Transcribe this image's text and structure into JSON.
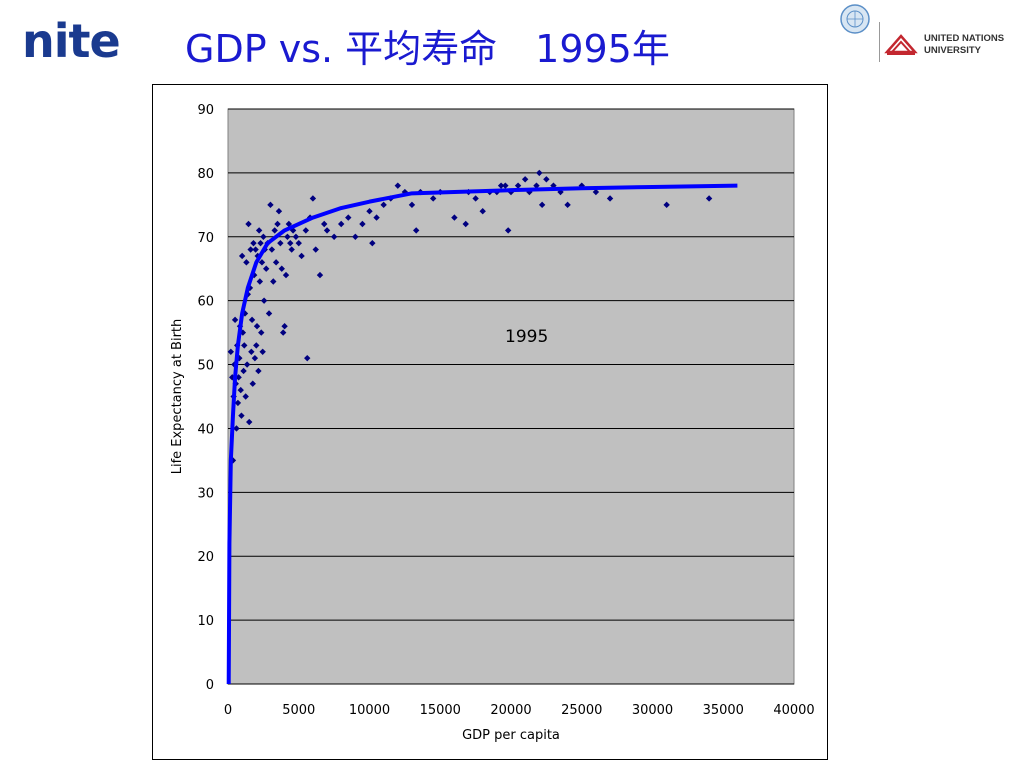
{
  "header": {
    "logo_text": "nite",
    "title": "GDP vs. 平均寿命　1995年",
    "partner_line1": "UNITED NATIONS",
    "partner_line2": "UNIVERSITY"
  },
  "chart_data": {
    "type": "scatter",
    "title": "",
    "xlabel": "GDP per capita",
    "ylabel": "Life Expectancy at Birth",
    "xlim": [
      0,
      40000
    ],
    "ylim": [
      0,
      90
    ],
    "xticks": [
      0,
      5000,
      10000,
      15000,
      20000,
      25000,
      30000,
      35000,
      40000
    ],
    "yticks": [
      0,
      10,
      20,
      30,
      40,
      50,
      60,
      70,
      80,
      90
    ],
    "grid": "horizontal",
    "background_color": "#c0c0c0",
    "annotation": "1995",
    "series": [
      {
        "kind": "scatter",
        "color": "#000080",
        "points": [
          [
            200,
            52
          ],
          [
            300,
            48
          ],
          [
            350,
            35
          ],
          [
            400,
            45
          ],
          [
            450,
            50
          ],
          [
            500,
            57
          ],
          [
            550,
            47
          ],
          [
            600,
            40
          ],
          [
            650,
            53
          ],
          [
            700,
            44
          ],
          [
            750,
            48
          ],
          [
            800,
            51
          ],
          [
            850,
            56
          ],
          [
            900,
            46
          ],
          [
            950,
            42
          ],
          [
            1000,
            67
          ],
          [
            1050,
            55
          ],
          [
            1100,
            49
          ],
          [
            1150,
            53
          ],
          [
            1200,
            58
          ],
          [
            1250,
            45
          ],
          [
            1300,
            66
          ],
          [
            1350,
            50
          ],
          [
            1400,
            61
          ],
          [
            1450,
            72
          ],
          [
            1500,
            41
          ],
          [
            1550,
            62
          ],
          [
            1600,
            68
          ],
          [
            1650,
            52
          ],
          [
            1700,
            57
          ],
          [
            1750,
            47
          ],
          [
            1800,
            69
          ],
          [
            1850,
            64
          ],
          [
            1900,
            51
          ],
          [
            1950,
            68
          ],
          [
            2000,
            53
          ],
          [
            2050,
            56
          ],
          [
            2100,
            67
          ],
          [
            2150,
            49
          ],
          [
            2200,
            71
          ],
          [
            2250,
            63
          ],
          [
            2300,
            69
          ],
          [
            2350,
            55
          ],
          [
            2400,
            66
          ],
          [
            2450,
            52
          ],
          [
            2500,
            70
          ],
          [
            2550,
            60
          ],
          [
            2600,
            68
          ],
          [
            2700,
            65
          ],
          [
            2800,
            69
          ],
          [
            2900,
            58
          ],
          [
            3000,
            75
          ],
          [
            3100,
            68
          ],
          [
            3200,
            63
          ],
          [
            3300,
            71
          ],
          [
            3400,
            66
          ],
          [
            3500,
            72
          ],
          [
            3600,
            74
          ],
          [
            3700,
            69
          ],
          [
            3800,
            65
          ],
          [
            3900,
            55
          ],
          [
            4000,
            56
          ],
          [
            4100,
            64
          ],
          [
            4200,
            70
          ],
          [
            4300,
            72
          ],
          [
            4400,
            69
          ],
          [
            4500,
            68
          ],
          [
            4600,
            71
          ],
          [
            4800,
            70
          ],
          [
            5000,
            69
          ],
          [
            5200,
            67
          ],
          [
            5500,
            71
          ],
          [
            5600,
            51
          ],
          [
            5800,
            73
          ],
          [
            6000,
            76
          ],
          [
            6200,
            68
          ],
          [
            6500,
            64
          ],
          [
            6800,
            72
          ],
          [
            7000,
            71
          ],
          [
            7500,
            70
          ],
          [
            8000,
            72
          ],
          [
            8500,
            73
          ],
          [
            9000,
            70
          ],
          [
            9500,
            72
          ],
          [
            10000,
            74
          ],
          [
            10200,
            69
          ],
          [
            10500,
            73
          ],
          [
            11000,
            75
          ],
          [
            11500,
            76
          ],
          [
            12000,
            78
          ],
          [
            12500,
            77
          ],
          [
            13000,
            75
          ],
          [
            13300,
            71
          ],
          [
            13600,
            77
          ],
          [
            14500,
            76
          ],
          [
            15000,
            77
          ],
          [
            16000,
            73
          ],
          [
            16800,
            72
          ],
          [
            17000,
            77
          ],
          [
            17500,
            76
          ],
          [
            18000,
            74
          ],
          [
            18500,
            77
          ],
          [
            19000,
            77
          ],
          [
            19300,
            78
          ],
          [
            19600,
            78
          ],
          [
            19800,
            71
          ],
          [
            20000,
            77
          ],
          [
            20500,
            78
          ],
          [
            21000,
            79
          ],
          [
            21300,
            77
          ],
          [
            21800,
            78
          ],
          [
            22000,
            80
          ],
          [
            22200,
            75
          ],
          [
            22500,
            79
          ],
          [
            23000,
            78
          ],
          [
            23500,
            77
          ],
          [
            24000,
            75
          ],
          [
            25000,
            78
          ],
          [
            26000,
            77
          ],
          [
            27000,
            76
          ],
          [
            31000,
            75
          ],
          [
            34000,
            76
          ]
        ]
      },
      {
        "kind": "line",
        "color": "#0000ff",
        "points": [
          [
            50,
            0
          ],
          [
            100,
            22
          ],
          [
            200,
            35
          ],
          [
            350,
            42
          ],
          [
            500,
            48
          ],
          [
            700,
            53
          ],
          [
            1000,
            58
          ],
          [
            1400,
            62
          ],
          [
            2000,
            66
          ],
          [
            2800,
            69
          ],
          [
            4000,
            71
          ],
          [
            6000,
            73
          ],
          [
            8000,
            74.5
          ],
          [
            10000,
            75.5
          ],
          [
            13000,
            76.8
          ],
          [
            16000,
            77.0
          ],
          [
            20000,
            77.3
          ],
          [
            25000,
            77.6
          ],
          [
            30000,
            77.8
          ],
          [
            36000,
            78.0
          ]
        ]
      }
    ]
  }
}
